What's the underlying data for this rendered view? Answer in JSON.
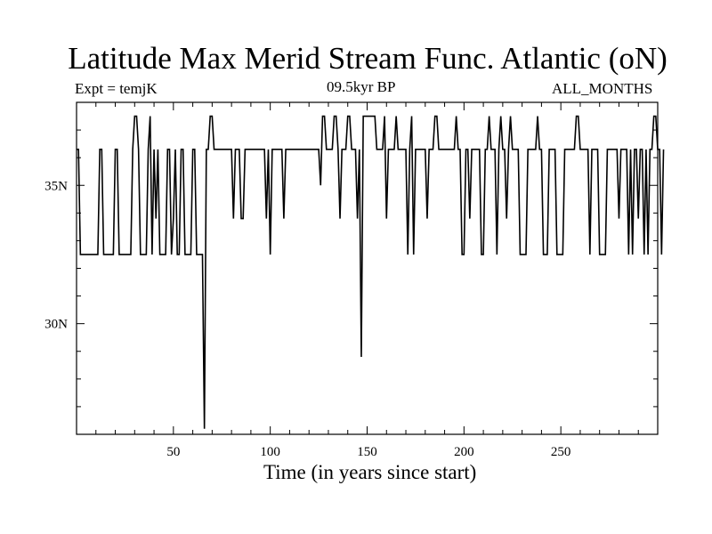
{
  "chart_data": {
    "type": "line",
    "title": "Latitude Max Merid Stream Func. Atlantic (oN)",
    "subtitle_left": "Expt = temjK",
    "subtitle_center": "09.5kyr BP",
    "subtitle_right": "ALL_MONTHS",
    "xlabel": "Time (in years since start)",
    "ylabel": "",
    "xlim": [
      0,
      300
    ],
    "ylim": [
      26,
      38
    ],
    "x_ticks": [
      50,
      100,
      150,
      200,
      250
    ],
    "x_tick_labels": [
      "50",
      "100",
      "150",
      "200",
      "250"
    ],
    "y_ticks": [
      30,
      35
    ],
    "y_tick_labels": [
      "30N",
      "35N"
    ],
    "grid": false,
    "legend": "none",
    "line_color": "#000000",
    "series": [
      {
        "values": [
          36.3,
          36.3,
          32.5,
          32.5,
          32.5,
          32.5,
          32.5,
          32.5,
          32.5,
          32.5,
          32.5,
          32.5,
          36.3,
          36.3,
          32.5,
          32.5,
          32.5,
          32.5,
          32.5,
          32.5,
          36.3,
          36.3,
          32.5,
          32.5,
          32.5,
          32.5,
          32.5,
          32.5,
          32.5,
          36.3,
          37.5,
          37.5,
          36.3,
          32.5,
          32.5,
          32.5,
          32.5,
          36.3,
          37.5,
          32.5,
          36.3,
          33.8,
          36.3,
          32.5,
          32.5,
          32.5,
          32.5,
          36.3,
          36.3,
          32.5,
          33.8,
          36.3,
          32.5,
          32.5,
          36.3,
          36.3,
          32.5,
          32.5,
          32.5,
          32.5,
          36.3,
          36.3,
          32.5,
          32.5,
          32.5,
          32.5,
          26.2,
          36.3,
          36.3,
          37.5,
          37.5,
          36.3,
          36.3,
          36.3,
          36.3,
          36.3,
          36.3,
          36.3,
          36.3,
          36.3,
          36.3,
          33.8,
          36.3,
          36.3,
          36.3,
          33.8,
          33.8,
          36.3,
          36.3,
          36.3,
          36.3,
          36.3,
          36.3,
          36.3,
          36.3,
          36.3,
          36.3,
          36.3,
          33.8,
          36.3,
          32.5,
          36.3,
          36.3,
          36.3,
          36.3,
          36.3,
          36.3,
          33.8,
          36.3,
          36.3,
          36.3,
          36.3,
          36.3,
          36.3,
          36.3,
          36.3,
          36.3,
          36.3,
          36.3,
          36.3,
          36.3,
          36.3,
          36.3,
          36.3,
          36.3,
          36.3,
          35.0,
          37.5,
          37.5,
          36.3,
          36.3,
          36.3,
          36.3,
          37.5,
          37.5,
          36.3,
          33.8,
          36.3,
          36.3,
          36.3,
          37.5,
          37.5,
          36.3,
          36.3,
          36.3,
          33.8,
          36.3,
          28.8,
          37.5,
          37.5,
          37.5,
          37.5,
          37.5,
          37.5,
          37.5,
          36.3,
          36.3,
          36.3,
          36.3,
          37.5,
          33.8,
          36.3,
          36.3,
          36.3,
          36.3,
          37.5,
          36.3,
          36.3,
          36.3,
          36.3,
          36.3,
          32.5,
          36.3,
          37.5,
          32.5,
          36.3,
          36.3,
          36.3,
          36.3,
          36.3,
          36.3,
          33.8,
          36.3,
          36.3,
          36.3,
          37.5,
          37.5,
          36.3,
          36.3,
          36.3,
          36.3,
          36.3,
          36.3,
          36.3,
          36.3,
          36.3,
          37.5,
          36.3,
          36.3,
          32.5,
          32.5,
          36.3,
          36.3,
          33.8,
          36.3,
          36.3,
          36.3,
          36.3,
          36.3,
          32.5,
          32.5,
          36.3,
          36.3,
          37.5,
          36.3,
          36.3,
          36.3,
          32.5,
          36.3,
          37.5,
          36.3,
          36.3,
          33.8,
          36.3,
          37.5,
          36.3,
          36.3,
          36.3,
          36.3,
          32.5,
          32.5,
          32.5,
          32.5,
          36.3,
          36.3,
          36.3,
          36.3,
          36.3,
          37.5,
          36.3,
          36.3,
          32.5,
          32.5,
          32.5,
          36.3,
          36.3,
          36.3,
          36.3,
          32.5,
          32.5,
          32.5,
          32.5,
          36.3,
          36.3,
          36.3,
          36.3,
          36.3,
          36.3,
          37.5,
          37.5,
          36.3,
          36.3,
          36.3,
          36.3,
          36.3,
          32.5,
          36.3,
          36.3,
          36.3,
          36.3,
          32.5,
          32.5,
          32.5,
          32.5,
          36.3,
          36.3,
          36.3,
          36.3,
          36.3,
          36.3,
          33.8,
          36.3,
          36.3,
          36.3,
          36.3,
          32.5,
          36.3,
          32.5,
          36.3,
          36.3,
          33.8,
          36.3,
          36.3,
          32.5,
          36.3,
          32.5,
          36.3,
          36.3,
          37.5,
          37.5,
          36.3,
          36.3,
          32.5,
          36.3
        ]
      }
    ]
  }
}
